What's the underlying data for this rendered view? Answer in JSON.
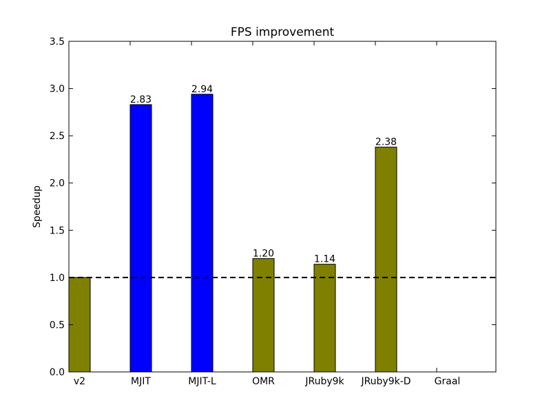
{
  "chart_data": {
    "type": "bar",
    "title": "FPS improvement",
    "xlabel": "",
    "ylabel": "Speedup",
    "ylim": [
      0,
      3.5
    ],
    "yticks": [
      "0.0",
      "0.5",
      "1.0",
      "1.5",
      "2.0",
      "2.5",
      "3.0",
      "3.5"
    ],
    "ytick_values": [
      0,
      0.5,
      1.0,
      1.5,
      2.0,
      2.5,
      3.0,
      3.5
    ],
    "categories": [
      "v2",
      "MJIT",
      "MJIT-L",
      "OMR",
      "JRuby9k",
      "JRuby9k-D",
      "Graal"
    ],
    "values": [
      1.0,
      2.83,
      2.94,
      1.2,
      1.14,
      2.38,
      null
    ],
    "data_labels": [
      "",
      "2.83",
      "2.94",
      "1.20",
      "1.14",
      "2.38",
      ""
    ],
    "bar_colors": [
      "#808000",
      "#0000ff",
      "#0000ff",
      "#808000",
      "#808000",
      "#808000",
      "#808000"
    ],
    "reference_line": {
      "value": 1.0,
      "style": "dashed",
      "color": "#000000"
    },
    "grid": false,
    "legend": "none"
  }
}
